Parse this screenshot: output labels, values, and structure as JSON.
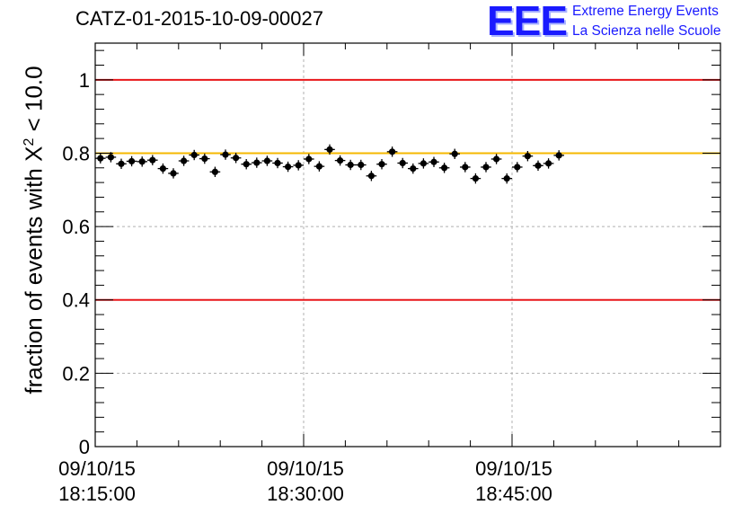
{
  "header": {
    "title": "CATZ-01-2015-10-09-00027"
  },
  "logo": {
    "mark": "EEE",
    "line1": "Extreme Energy Events",
    "line2": "La Scienza nelle Scuole"
  },
  "colors": {
    "limit_line": "#e8161a",
    "reference_line": "#f5b800",
    "markers": "#000000",
    "grid": "#b0b0b0",
    "logo": "#1a1aff"
  },
  "chart_data": {
    "type": "scatter",
    "title": "CATZ-01-2015-10-09-00027",
    "ylabel_prefix": "fraction of events with X",
    "ylabel_sup": "2",
    "ylabel_suffix": " < 10.0",
    "ylim": [
      0,
      1.1
    ],
    "xlim_minutes_from_start": [
      0,
      45
    ],
    "x_ticks": [
      {
        "minutes": 0,
        "date": "09/10/15",
        "time": "18:15:00"
      },
      {
        "minutes": 15,
        "date": "09/10/15",
        "time": "18:30:00"
      },
      {
        "minutes": 30,
        "date": "09/10/15",
        "time": "18:45:00"
      }
    ],
    "y_ticks": [
      {
        "value": 0,
        "label": "0"
      },
      {
        "value": 0.2,
        "label": "0.2"
      },
      {
        "value": 0.4,
        "label": "0.4"
      },
      {
        "value": 0.6,
        "label": "0.6"
      },
      {
        "value": 0.8,
        "label": "0.8"
      },
      {
        "value": 1.0,
        "label": "1"
      }
    ],
    "grid": true,
    "horizontal_lines": [
      {
        "y": 1.0,
        "color": "#e8161a"
      },
      {
        "y": 0.4,
        "color": "#e8161a"
      },
      {
        "y": 0.8,
        "color": "#f5b800"
      }
    ],
    "x_step_minutes": 0.75,
    "x_start_minutes": 0.375,
    "y_error": 0.014,
    "values": [
      0.786,
      0.789,
      0.771,
      0.778,
      0.777,
      0.781,
      0.758,
      0.745,
      0.779,
      0.795,
      0.785,
      0.749,
      0.796,
      0.787,
      0.77,
      0.774,
      0.779,
      0.773,
      0.763,
      0.767,
      0.784,
      0.764,
      0.81,
      0.78,
      0.768,
      0.768,
      0.738,
      0.77,
      0.804,
      0.773,
      0.758,
      0.772,
      0.776,
      0.76,
      0.798,
      0.762,
      0.731,
      0.762,
      0.784,
      0.731,
      0.762,
      0.792,
      0.766,
      0.772,
      0.794
    ]
  }
}
